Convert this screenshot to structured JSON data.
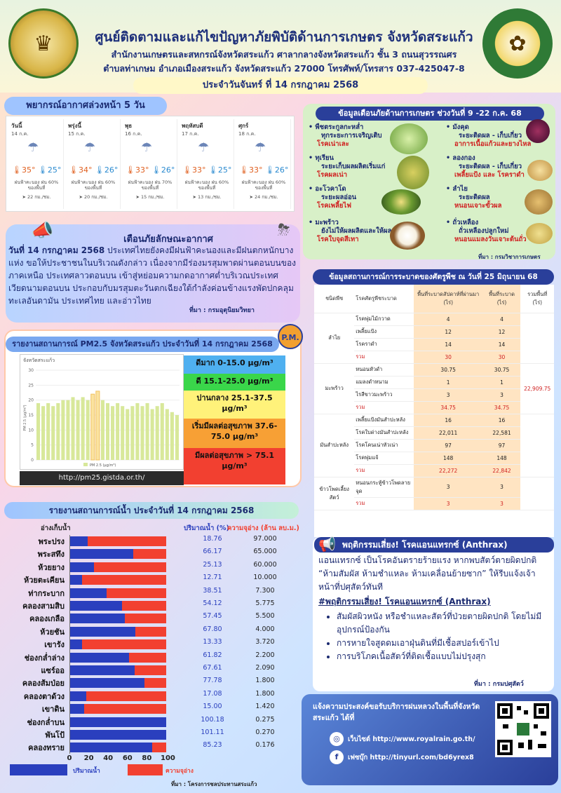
{
  "header": {
    "title": "ศูนย์ติดตามและแก้ไขปัญหาภัยพิบัติด้านการเกษตร จังหวัดสระแก้ว",
    "sub1": "สำนักงานเกษตรและสหกรณ์จังหวัดสระแก้ว ศาลากลางจังหวัดสระแก้ว ชั้น 3 ถนนสุวรรณศร",
    "sub2": "ตำบลท่าเกษม อำเภอเมืองสระแก้ว จังหวัดสระแก้ว 27000 โทรศัพท์/โทรสาร 037-425047-8",
    "date": "ประจำวันจันทร์ ที่ 14 กรกฎาคม 2568",
    "logo_left_text": "กระทรวงเกษตรและสหกรณ์ MINISTRY OF AGRICULTURE AND COOPERATIVES"
  },
  "forecast": {
    "title": "พยากรณ์อากาศล่วงหน้า 5 วัน",
    "days": [
      {
        "day": "วันนี้",
        "date": "14 ก.ค.",
        "hi": "35°",
        "lo": "25°",
        "rain": "ฝนฟ้าคะนอง\nฝน 60% ของพื้นที่",
        "wind": "22 กม./ชม.",
        "icon": "thunder-rain-icon"
      },
      {
        "day": "พรุ่งนี้",
        "date": "15 ก.ค.",
        "hi": "34°",
        "lo": "26°",
        "rain": "ฝนฟ้าคะนอง\nฝน 60% ของพื้นที่",
        "wind": "20 กม./ชม.",
        "icon": "thunder-rain-icon"
      },
      {
        "day": "พุธ",
        "date": "16 ก.ค.",
        "hi": "33°",
        "lo": "26°",
        "rain": "ฝนฟ้าคะนอง\nฝน 70% ของพื้นที่",
        "wind": "15 กม./ชม.",
        "icon": "thunder-rain-icon"
      },
      {
        "day": "พฤหัสบดี",
        "date": "17 ก.ค.",
        "hi": "33°",
        "lo": "25°",
        "rain": "ฝนฟ้าคะนอง\nฝน 60% ของพื้นที่",
        "wind": "13 กม./ชม.",
        "icon": "thunder-rain-icon"
      },
      {
        "day": "ศุกร์",
        "date": "18 ก.ค.",
        "hi": "33°",
        "lo": "26°",
        "rain": "ฝนฟ้าคะนอง\nฝน 60% ของพื้นที่",
        "wind": "24 กม./ชม.",
        "icon": "thunder-rain-icon"
      }
    ]
  },
  "warning": {
    "title": "เตือนภัยลักษณะอากาศ",
    "date_label": "วันที่ 14 กรกฎาคม 2568",
    "body": "ประเทศไทยยังคงมีฝนฟ้าคะนองและมีฝนตกหนักบางแห่ง ขอให้ประชาชนในบริเวณดังกล่าว เนื่องจากมีร่องมรสุมพาดผ่านตอนบนของภาคเหนือ ประเทศลาวตอนบน เข้าสู่หย่อมความกดอากาศต่ำบริเวณประเทศเวียดนามตอนบน ประกอบกับมรสุมตะวันตกเฉียงใต้กำลังค่อนข้างแรงพัดปกคลุมทะเลอันดามัน ประเทศไทย และอ่าวไทย",
    "source": "ที่มา : กรมอุตุนิยมวิทยา"
  },
  "agri": {
    "title": "ข้อมูลเตือนภัยด้านการเกษตร ช่วงวันที่ 9 -22 ก.ค. 68",
    "items": [
      {
        "crop": "พืชตระกูลกะหล่ำ",
        "stage": "ทุกระยะการเจริญเติบ",
        "threat": "โรคเน่าเละ"
      },
      {
        "crop": "ทุเรียน",
        "stage": "ระยะเก็บผลผลิตเริ่มแก่",
        "threat": "โรคผลเน่า"
      },
      {
        "crop": "อะโวคาโด",
        "stage": "ระยะผลอ่อน",
        "threat": "โรคเพลี้ยไฟ"
      },
      {
        "crop": "มะพร้าว",
        "stage": "ยังไม่ให้ผลผลิตและให้ผลผลิตแล้ว",
        "threat": "โรคใบจุดสีเทา"
      },
      {
        "crop": "มังคุด",
        "stage": "ระยะติดผล - เก็บเกี่ยว",
        "threat": "อาการเนื้อแก้วและยางไหล"
      },
      {
        "crop": "ลองกอง",
        "stage": "ระยะติดผล - เก็บเกี่ยว",
        "threat": "เพลี้ยแป้ง และ โรคราดำ"
      },
      {
        "crop": "ลำไย",
        "stage": "ระยะติดผล",
        "threat": "หนอนเจาะขั้วผล"
      },
      {
        "crop": "ถั่วเหลือง",
        "stage": "ถั่วเหลืองปลูกใหม่",
        "threat": "หนอนแมลงวันเจาะต้นถั่ว"
      }
    ],
    "source": "ที่มา : กรมวิชาการเกษตร"
  },
  "pest": {
    "title": "ข้อมูลสถานการณ์การระบาดของศัตรูพืช ณ วันที่ 25 มิถุนายน 68",
    "headers": [
      "ชนิดพืช",
      "โรคศัตรูพืชระบาด",
      "พื้นที่ระบาดสัปดาห์ที่ผ่านมา (ไร่)",
      "พื้นที่ระบาด (ไร่)",
      "รวมพื้นที่ (ไร่)"
    ],
    "groups": [
      {
        "crop": "ลำไย",
        "rows": [
          [
            "โรคพุ่มไม้กวาด",
            "4",
            "4"
          ],
          [
            "เพลี้ยแป้ง",
            "12",
            "12"
          ],
          [
            "โรคราดำ",
            "14",
            "14"
          ]
        ],
        "sum": [
          "รวม",
          "30",
          "30"
        ],
        "total": ""
      },
      {
        "crop": "มะพร้าว",
        "rows": [
          [
            "หนอนหัวดำ",
            "30.75",
            "30.75"
          ],
          [
            "แมลงดำหนาม",
            "1",
            "1"
          ],
          [
            "ไรสีขาวมะพร้าว",
            "3",
            "3"
          ]
        ],
        "sum": [
          "รวม",
          "34.75",
          "34.75"
        ],
        "total": "22,909.75"
      },
      {
        "crop": "มันสำปะหลัง",
        "rows": [
          [
            "เพลี้ยแป้งมันสำปะหลัง",
            "16",
            "16"
          ],
          [
            "โรคใบด่างมันสำปะหลัง",
            "22,011",
            "22,581"
          ],
          [
            "โรคโคนเน่าหัวเน่า",
            "97",
            "97"
          ],
          [
            "โรคพุ่มแจ้",
            "148",
            "148"
          ]
        ],
        "sum": [
          "รวม",
          "22,272",
          "22,842"
        ],
        "total": ""
      },
      {
        "crop": "ข้าวโพดเลี้ยงสัตว์",
        "rows": [
          [
            "หนอนกระทู้ข้าวโพดลายจุด",
            "3",
            "3"
          ]
        ],
        "sum": [
          "รวม",
          "3",
          "3"
        ],
        "total": ""
      }
    ]
  },
  "pm25": {
    "title": "รายงานสถานการณ์ PM2.5 จังหวัดสระแก้ว ประจำวันที่ 14 กรกฎาคม 2568",
    "badge": "P.M.",
    "chart_title": "จังหวัดสระแก้ว",
    "legend_series": "PM 2.5 (µg/m³)",
    "url": "http://pm25.gistda.or.th/",
    "levels": [
      {
        "label": "ดีมาก 0-15.0 µg/m³",
        "color": "#4fb0f0"
      },
      {
        "label": "ดี 15.1-25.0 µg/m³",
        "color": "#3ad64a"
      },
      {
        "label": "ปานกลาง 25.1-37.5 µg/m³",
        "color": "#fff27a"
      },
      {
        "label": "เริ่มมีผลต่อสุขภาพ 37.6-75.0 µg/m³",
        "color": "#f7a035"
      },
      {
        "label": "มีผลต่อสุขภาพ > 75.1 µg/m³",
        "color": "#f24030"
      }
    ]
  },
  "chart_data": {
    "type": "bar",
    "title": "จังหวัดสระแก้ว",
    "ylabel": "PM 2.5 (µg/m³)",
    "ylim": [
      0,
      30
    ],
    "yticks": [
      0,
      5,
      10,
      15,
      20,
      25,
      30
    ],
    "series": [
      {
        "name": "PM 2.5 (µg/m³)",
        "values": [
          19,
          18,
          19,
          18,
          19,
          20,
          20,
          21,
          20,
          21,
          20,
          22,
          23,
          20,
          19,
          18,
          19,
          18,
          17,
          18,
          19,
          18,
          19,
          17,
          18,
          19,
          17,
          16,
          15
        ]
      }
    ],
    "highlight_index": [
      11,
      12
    ],
    "colors": {
      "normal": "#d8e89a",
      "highlight": "#fbe3a0"
    }
  },
  "water": {
    "title": "รายงานสถานการณ์น้ำ ประจำวันที่ 14 กรกฎาคม 2568",
    "col_name": "อ่างเก็บน้ำ",
    "col_pct": "ปริมาณน้ำ (%)",
    "col_cap": "ความจุอ่าง (ล้าน ลบ.ม.)",
    "rows": [
      {
        "name": "พระปรง",
        "pct": 18.76,
        "pct_text": "18.76",
        "cap": "97.000"
      },
      {
        "name": "พระสทึง",
        "pct": 66.17,
        "pct_text": "66.17",
        "cap": "65.000"
      },
      {
        "name": "ห้วยยาง",
        "pct": 25.13,
        "pct_text": "25.13",
        "cap": "60.000"
      },
      {
        "name": "ห้วยตะเคียน",
        "pct": 12.71,
        "pct_text": "12.71",
        "cap": "10.000"
      },
      {
        "name": "ท่ากระบาก",
        "pct": 38.51,
        "pct_text": "38.51",
        "cap": "7.300"
      },
      {
        "name": "คลองสามสิบ",
        "pct": 54.12,
        "pct_text": "54.12",
        "cap": "5.775"
      },
      {
        "name": "คลองเกลือ",
        "pct": 57.45,
        "pct_text": "57.45",
        "cap": "5.500"
      },
      {
        "name": "ห้วยชัน",
        "pct": 67.8,
        "pct_text": "67.80",
        "cap": "4.000"
      },
      {
        "name": "เขารัง",
        "pct": 13.33,
        "pct_text": "13.33",
        "cap": "3.720"
      },
      {
        "name": "ช่องกล่ำล่าง",
        "pct": 61.82,
        "pct_text": "61.82",
        "cap": "2.200"
      },
      {
        "name": "แซร์ออ",
        "pct": 67.61,
        "pct_text": "67.61",
        "cap": "2.090"
      },
      {
        "name": "คลองส้มป่อย",
        "pct": 77.78,
        "pct_text": "77.78",
        "cap": "1.800"
      },
      {
        "name": "คลองตาด้วง",
        "pct": 17.08,
        "pct_text": "17.08",
        "cap": "1.800"
      },
      {
        "name": "เขาดิน",
        "pct": 15.0,
        "pct_text": "15.00",
        "cap": "1.420"
      },
      {
        "name": "ช่องกล่ำบน",
        "pct": 100.18,
        "pct_text": "100.18",
        "cap": "0.275"
      },
      {
        "name": "พันโป้",
        "pct": 101.11,
        "pct_text": "101.11",
        "cap": "0.270"
      },
      {
        "name": "คลองทราย",
        "pct": 85.23,
        "pct_text": "85.23",
        "cap": "0.176"
      }
    ],
    "axis_ticks": [
      "0",
      "20",
      "40",
      "60",
      "80",
      "100"
    ],
    "legend_volume": "ปริมาณน้ำ",
    "legend_capacity": "ความจุอ่าง",
    "source": "ที่มา : โครงการชลประทานสระแก้ว"
  },
  "anthrax": {
    "title": "พฤติกรรมเสี่ยง! โรคแอนแทรกซ์ (Anthrax)",
    "intro": "แอนแทรกซ์ เป็นโรคอันตรายร้ายแรง หากพบสัตว์ตายผิดปกติ “ห้ามสัมผัส ห้ามชำแหละ ห้ามเคลื่อนย้ายซาก” ให้รีบแจ้งเจ้าหน้าที่ปศุสัตว์ทันที",
    "subtitle": "#พฤติกรรมเสี่ยง! โรคแอนแทรกซ์ (Anthrax)",
    "bullets": [
      "สัมผัสผิวหนัง หรือชำแหละสัตว์ที่ป่วยตายผิดปกติ โดยไม่มีอุปกรณ์ป้องกัน",
      "การหายใจสูดดมเอาฝุ่นดินที่มีเชื้อสปอร์เข้าไป",
      "การบริโภคเนื้อสัตว์ที่ติดเชื้อแบบไม่ปรุงสุก"
    ],
    "source": "ที่มา : กรมปศุสัตว์"
  },
  "contact": {
    "title": "แจ้งความประสงค์ขอรับบริการฝนหลวงในพื้นที่จังหวัดสระแก้ว ได้ที่",
    "website": "เว็บไซต์ http://www.royalrain.go.th/",
    "facebook": "เฟซบุ๊ก http://tinyurl.com/bd6yrex8"
  }
}
